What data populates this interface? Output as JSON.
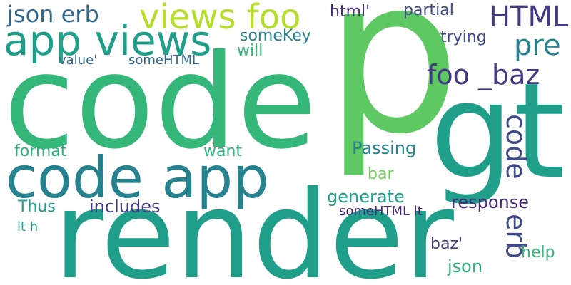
{
  "palette": {
    "c1": "#35b779",
    "c2": "#1f9e89",
    "c3": "#31688e",
    "c4": "#443983",
    "c5": "#482878",
    "c6": "#6ece58",
    "c7": "#3e4a89",
    "c8": "#26828e",
    "c9": "#b5de2b",
    "c10": "#2db27d",
    "c11": "#5ec962"
  },
  "words": [
    {
      "text": "p",
      "color": "#5ec962"
    },
    {
      "text": "code",
      "color": "#35b779"
    },
    {
      "text": "render",
      "color": "#1f9e89"
    },
    {
      "text": "gt",
      "color": "#1f9e89"
    },
    {
      "text": "code app",
      "color": "#26828e"
    },
    {
      "text": "app views",
      "color": "#1f9e89"
    },
    {
      "text": "views foo",
      "color": "#b5de2b"
    },
    {
      "text": "json erb",
      "color": "#31688e"
    },
    {
      "text": "HTML",
      "color": "#443983"
    },
    {
      "text": "pre",
      "color": "#26828e"
    },
    {
      "text": "foo _baz",
      "color": "#443983"
    },
    {
      "text": "code",
      "color": "#3e4a89"
    },
    {
      "text": "erb",
      "color": "#3e4a89"
    },
    {
      "text": "html'",
      "color": "#482878"
    },
    {
      "text": "partial",
      "color": "#3e4a89"
    },
    {
      "text": "trying",
      "color": "#3e4a89"
    },
    {
      "text": "someKey",
      "color": "#26828e"
    },
    {
      "text": "will",
      "color": "#35b779"
    },
    {
      "text": "value'",
      "color": "#31688e"
    },
    {
      "text": "someHTML",
      "color": "#31688e"
    },
    {
      "text": "format",
      "color": "#2db27d"
    },
    {
      "text": "want",
      "color": "#2db27d"
    },
    {
      "text": "Passing",
      "color": "#26828e"
    },
    {
      "text": "bar",
      "color": "#6ece58"
    },
    {
      "text": "generate",
      "color": "#1f9e89"
    },
    {
      "text": "Thus",
      "color": "#1f9e89"
    },
    {
      "text": "includes",
      "color": "#443983"
    },
    {
      "text": "response",
      "color": "#482878"
    },
    {
      "text": "someHTML lt",
      "color": "#482878"
    },
    {
      "text": "lt h",
      "color": "#1f9e89"
    },
    {
      "text": "baz'",
      "color": "#443983"
    },
    {
      "text": "help",
      "color": "#35b779"
    },
    {
      "text": "json",
      "color": "#2db27d"
    }
  ]
}
